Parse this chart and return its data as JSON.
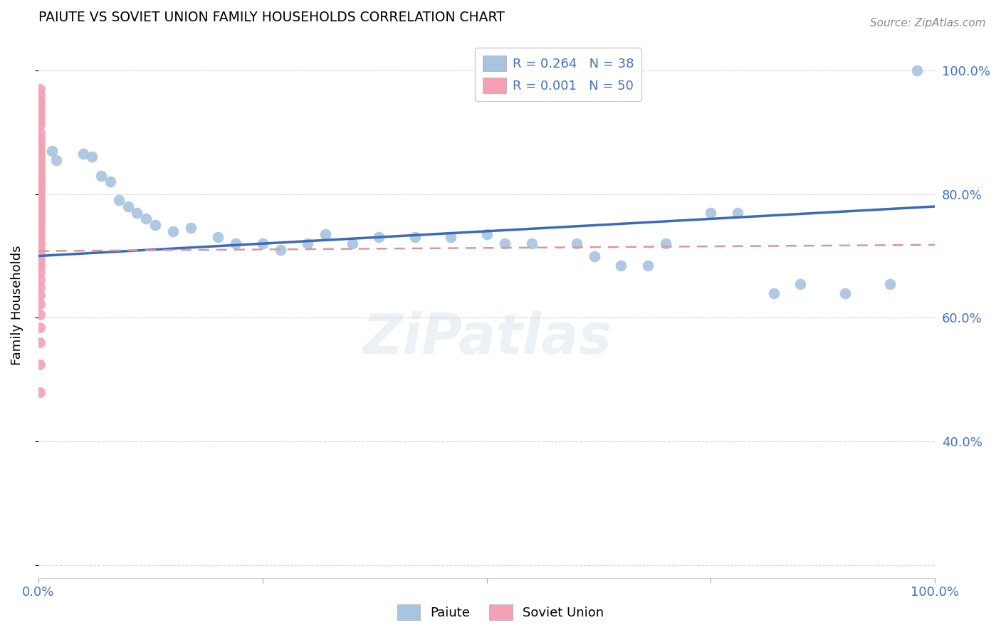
{
  "title": "PAIUTE VS SOVIET UNION FAMILY HOUSEHOLDS CORRELATION CHART",
  "source_text": "Source: ZipAtlas.com",
  "ylabel": "Family Households",
  "paiute_R": "0.264",
  "paiute_N": "38",
  "soviet_R": "0.001",
  "soviet_N": "50",
  "paiute_color": "#a8c4e0",
  "soviet_color": "#f4a0b5",
  "paiute_line_color": "#3a6bba",
  "soviet_line_color": "#d89898",
  "text_color": "#4472c4",
  "watermark": "ZiPatlas",
  "figsize": [
    14.06,
    8.92
  ],
  "dpi": 100,
  "xlim": [
    0.0,
    1.0
  ],
  "ylim": [
    0.18,
    1.06
  ],
  "paiute_x": [
    0.015,
    0.02,
    0.05,
    0.06,
    0.07,
    0.08,
    0.09,
    0.1,
    0.11,
    0.12,
    0.13,
    0.15,
    0.17,
    0.2,
    0.22,
    0.25,
    0.27,
    0.3,
    0.32,
    0.35,
    0.38,
    0.42,
    0.46,
    0.5,
    0.52,
    0.55,
    0.6,
    0.62,
    0.65,
    0.68,
    0.7,
    0.75,
    0.78,
    0.82,
    0.85,
    0.9,
    0.95,
    0.98
  ],
  "paiute_y": [
    0.87,
    0.855,
    0.865,
    0.86,
    0.83,
    0.82,
    0.79,
    0.78,
    0.77,
    0.76,
    0.75,
    0.74,
    0.745,
    0.73,
    0.72,
    0.72,
    0.71,
    0.72,
    0.735,
    0.72,
    0.73,
    0.73,
    0.73,
    0.735,
    0.72,
    0.72,
    0.72,
    0.7,
    0.685,
    0.685,
    0.72,
    0.77,
    0.77,
    0.64,
    0.655,
    0.64,
    0.655,
    1.0
  ],
  "soviet_x": [
    0.002,
    0.002,
    0.002,
    0.002,
    0.002,
    0.002,
    0.002,
    0.002,
    0.002,
    0.002,
    0.002,
    0.002,
    0.002,
    0.002,
    0.002,
    0.002,
    0.002,
    0.002,
    0.002,
    0.002,
    0.002,
    0.002,
    0.002,
    0.002,
    0.002,
    0.002,
    0.002,
    0.002,
    0.002,
    0.002,
    0.002,
    0.002,
    0.002,
    0.002,
    0.002,
    0.002,
    0.002,
    0.002,
    0.002,
    0.002,
    0.002,
    0.002,
    0.002,
    0.002,
    0.002,
    0.002,
    0.002,
    0.002,
    0.002,
    0.002
  ],
  "soviet_y": [
    0.97,
    0.96,
    0.95,
    0.945,
    0.935,
    0.928,
    0.92,
    0.912,
    0.9,
    0.892,
    0.884,
    0.876,
    0.868,
    0.862,
    0.855,
    0.848,
    0.842,
    0.836,
    0.83,
    0.824,
    0.817,
    0.811,
    0.805,
    0.799,
    0.793,
    0.786,
    0.78,
    0.773,
    0.766,
    0.759,
    0.752,
    0.745,
    0.738,
    0.73,
    0.723,
    0.716,
    0.708,
    0.7,
    0.692,
    0.683,
    0.673,
    0.662,
    0.65,
    0.637,
    0.622,
    0.605,
    0.585,
    0.56,
    0.525,
    0.48
  ],
  "paiute_trendline_x": [
    0.0,
    1.0
  ],
  "paiute_trendline_y": [
    0.7,
    0.78
  ],
  "soviet_trendline_x": [
    0.0,
    1.0
  ],
  "soviet_trendline_y": [
    0.708,
    0.718
  ],
  "grid_color": "#cccccc",
  "grid_yticks": [
    0.2,
    0.4,
    0.6,
    0.8,
    1.0
  ],
  "right_ytick_labels": [
    "",
    "40.0%",
    "60.0%",
    "80.0%",
    "100.0%"
  ]
}
